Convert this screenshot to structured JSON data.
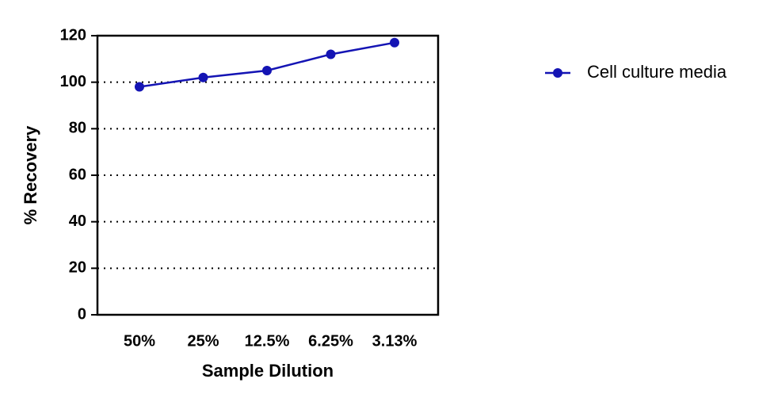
{
  "chart_data": {
    "type": "line",
    "x_label": "Sample Dilution",
    "y_label": "% Recovery",
    "categories": [
      "50%",
      "25%",
      "12.5%",
      "6.25%",
      "3.13%"
    ],
    "series": [
      {
        "name": "Cell culture media",
        "color": "#1414b4",
        "values": [
          98,
          102,
          105,
          112,
          117
        ]
      }
    ],
    "ylim": [
      0,
      120
    ],
    "yticks": [
      0,
      20,
      40,
      60,
      80,
      100,
      120
    ],
    "grid": true
  }
}
